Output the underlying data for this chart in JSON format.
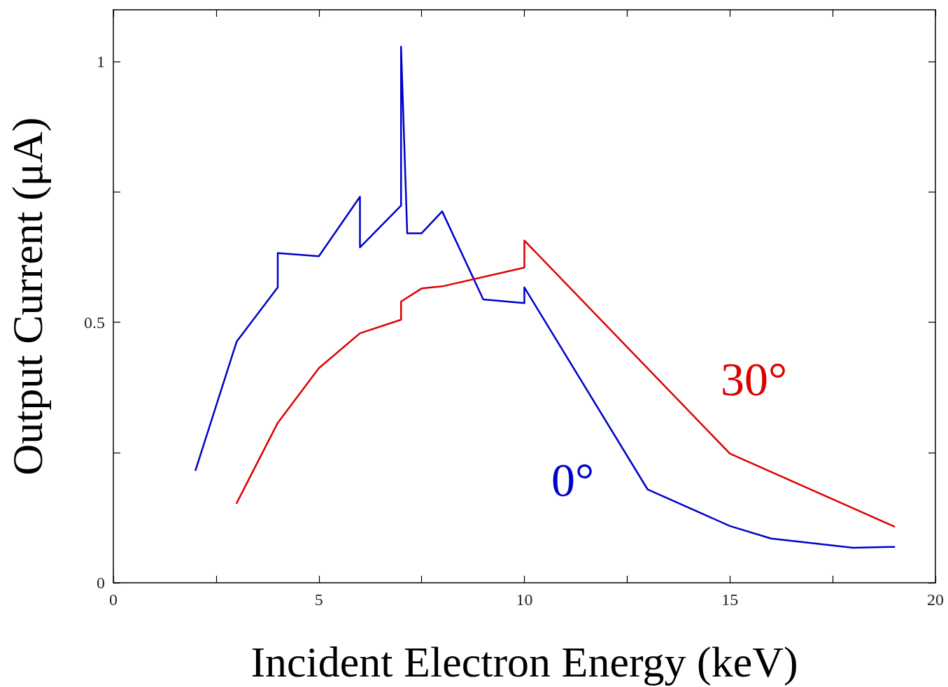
{
  "chart_data": {
    "type": "line",
    "xlabel": "Incident Electron Energy (keV)",
    "ylabel": "Output Current (μA)",
    "xlim": [
      0,
      20
    ],
    "ylim": [
      0,
      1.1
    ],
    "xticks": [
      0,
      {
        "value": 2.5,
        "label": null
      },
      5,
      {
        "value": 7.5,
        "label": null
      },
      10,
      {
        "value": 12.5,
        "label": null
      },
      15,
      {
        "value": 17.5,
        "label": null
      },
      20
    ],
    "yticks": [
      0,
      {
        "value": 0.25,
        "label": null
      },
      0.5,
      {
        "value": 0.75,
        "label": null
      },
      1
    ],
    "grid": false,
    "legend": false,
    "marker": "none",
    "line_style": "solid",
    "series": [
      {
        "name": "0°",
        "color": "#0000cc",
        "x": [
          2,
          3,
          4,
          4,
          5,
          6,
          6,
          7,
          7,
          7.15,
          7.5,
          8,
          9,
          10,
          10,
          13,
          15,
          16,
          18,
          19
        ],
        "values": [
          0.216,
          0.463,
          0.567,
          0.633,
          0.627,
          0.741,
          0.644,
          0.724,
          1.029,
          0.671,
          0.671,
          0.713,
          0.544,
          0.537,
          0.567,
          0.179,
          0.109,
          0.085,
          0.067,
          0.069
        ]
      },
      {
        "name": "30°",
        "color": "#dd0000",
        "x": [
          3,
          4,
          5,
          6,
          7,
          7,
          7.5,
          8,
          10,
          10,
          15,
          19
        ],
        "values": [
          0.153,
          0.307,
          0.412,
          0.479,
          0.505,
          0.54,
          0.565,
          0.569,
          0.605,
          0.657,
          0.248,
          0.108
        ]
      }
    ]
  }
}
